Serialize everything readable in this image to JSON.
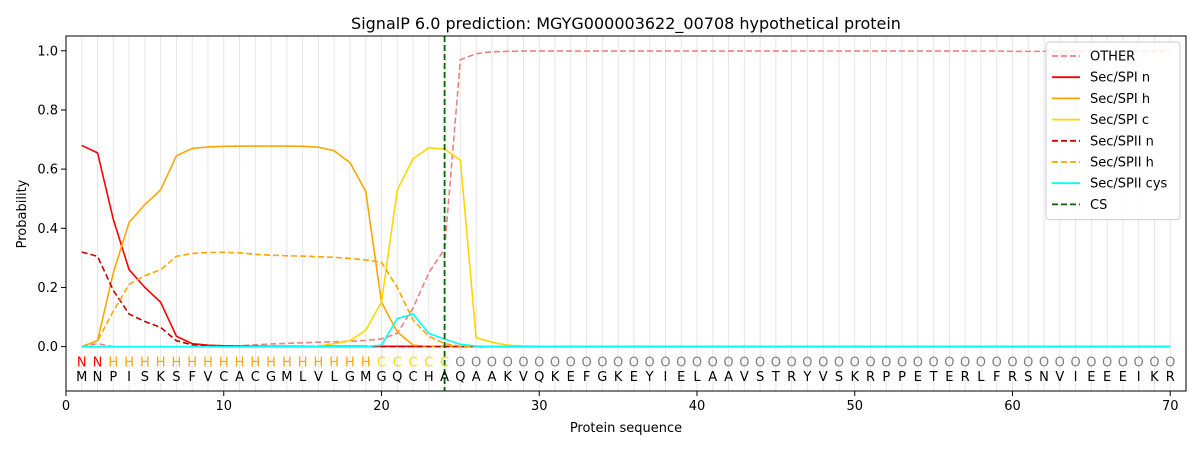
{
  "chart_data": {
    "type": "line",
    "title": "SignalP 6.0 prediction: MGYG000003622_00708 hypothetical protein",
    "xlabel": "Protein sequence",
    "ylabel": "Probability",
    "xlim": [
      0,
      71
    ],
    "ylim": [
      -0.15,
      1.05
    ],
    "xticks": [
      0,
      10,
      20,
      30,
      40,
      50,
      60,
      70
    ],
    "yticks": [
      0.0,
      0.2,
      0.4,
      0.6,
      0.8,
      1.0
    ],
    "xtick_labels": [
      "0",
      "10",
      "20",
      "30",
      "40",
      "50",
      "60",
      "70"
    ],
    "ytick_labels": [
      "0.0",
      "0.2",
      "0.4",
      "0.6",
      "0.8",
      "1.0"
    ],
    "grid": "vertical lines at each residue",
    "legend_position": "top-right",
    "sequence": "MNPISKSFVCACGMLVLGMGQCHAQAAKVQKEFGKEYIELAAVSTRYVSKRPPETERLFRSNVIEEEIKR",
    "region_labels": "NNHHHHHHHHHHHHHHHHHCCCCCOOOOOOOOOOOOOOOOOOOOOOOOOOOOOOOOOOOOOOOOOOOOOO",
    "region_colors": {
      "N": "#ff0000",
      "H": "#ffa500",
      "C": "#ffd700",
      "O": "#808080"
    },
    "cleavage_site": 24,
    "series": [
      {
        "name": "OTHER",
        "color": "#f08080",
        "dash": "dashed",
        "values": [
          0.0,
          0.01,
          0.0,
          0.0,
          0.0,
          0.0,
          0.0,
          0.0,
          0.0,
          0.0,
          0.003,
          0.006,
          0.009,
          0.011,
          0.013,
          0.015,
          0.016,
          0.018,
          0.021,
          0.026,
          0.045,
          0.13,
          0.25,
          0.33,
          0.97,
          0.99,
          0.997,
          0.998,
          0.999,
          0.999,
          0.999,
          0.999,
          0.999,
          0.999,
          0.999,
          0.999,
          0.999,
          0.999,
          0.999,
          0.999,
          0.999,
          0.999,
          0.999,
          0.999,
          0.999,
          0.999,
          0.999,
          0.999,
          0.999,
          0.999,
          0.999,
          0.999,
          0.999,
          0.999,
          0.999,
          0.999,
          0.999,
          0.999,
          0.999,
          0.998,
          0.998,
          0.998,
          0.998,
          0.998,
          0.998,
          0.998,
          0.998,
          0.998,
          0.998,
          0.998
        ]
      },
      {
        "name": "Sec/SPI n",
        "color": "#ff0000",
        "dash": "solid",
        "values": [
          0.68,
          0.655,
          0.43,
          0.26,
          0.2,
          0.15,
          0.035,
          0.01,
          0.005,
          0.003,
          0.002,
          0.001,
          0.001,
          0.001,
          0.001,
          0.001,
          0.001,
          0.001,
          0.001,
          0.001,
          0.001,
          0.001,
          0.001,
          0.001,
          0.0,
          0.0,
          0.0,
          0.0,
          0.0,
          0.0,
          0.0,
          0.0,
          0.0,
          0.0,
          0.0,
          0.0,
          0.0,
          0.0,
          0.0,
          0.0,
          0.0,
          0.0,
          0.0,
          0.0,
          0.0,
          0.0,
          0.0,
          0.0,
          0.0,
          0.0,
          0.0,
          0.0,
          0.0,
          0.0,
          0.0,
          0.0,
          0.0,
          0.0,
          0.0,
          0.0,
          0.0,
          0.0,
          0.0,
          0.0,
          0.0,
          0.0,
          0.0,
          0.0,
          0.0,
          0.0
        ]
      },
      {
        "name": "Sec/SPI h",
        "color": "#ffa500",
        "dash": "solid",
        "values": [
          0.0,
          0.02,
          0.25,
          0.42,
          0.48,
          0.53,
          0.645,
          0.67,
          0.675,
          0.677,
          0.678,
          0.678,
          0.678,
          0.678,
          0.677,
          0.674,
          0.662,
          0.622,
          0.525,
          0.15,
          0.05,
          0.005,
          0.001,
          0.0,
          0.0,
          0.0,
          0.0,
          0.0,
          0.0,
          0.0,
          0.0,
          0.0,
          0.0,
          0.0,
          0.0,
          0.0,
          0.0,
          0.0,
          0.0,
          0.0,
          0.0,
          0.0,
          0.0,
          0.0,
          0.0,
          0.0,
          0.0,
          0.0,
          0.0,
          0.0,
          0.0,
          0.0,
          0.0,
          0.0,
          0.0,
          0.0,
          0.0,
          0.0,
          0.0,
          0.0,
          0.0,
          0.0,
          0.0,
          0.0,
          0.0,
          0.0,
          0.0,
          0.0,
          0.0,
          0.0
        ]
      },
      {
        "name": "Sec/SPI c",
        "color": "#ffd700",
        "dash": "solid",
        "values": [
          0.0,
          0.0,
          0.0,
          0.0,
          0.0,
          0.0,
          0.0,
          0.0,
          0.0,
          0.0,
          0.0,
          0.0,
          0.0,
          0.0,
          0.0,
          0.002,
          0.01,
          0.02,
          0.055,
          0.15,
          0.53,
          0.635,
          0.672,
          0.668,
          0.63,
          0.03,
          0.015,
          0.005,
          0.002,
          0.001,
          0.0,
          0.0,
          0.0,
          0.0,
          0.0,
          0.0,
          0.0,
          0.0,
          0.0,
          0.0,
          0.0,
          0.0,
          0.0,
          0.0,
          0.0,
          0.0,
          0.0,
          0.0,
          0.0,
          0.0,
          0.0,
          0.0,
          0.0,
          0.0,
          0.0,
          0.0,
          0.0,
          0.0,
          0.0,
          0.0,
          0.0,
          0.0,
          0.0,
          0.0,
          0.0,
          0.0,
          0.0,
          0.0,
          0.0,
          0.0
        ]
      },
      {
        "name": "Sec/SPII n",
        "color": "#cc0000",
        "dash": "dashed",
        "values": [
          0.32,
          0.305,
          0.19,
          0.11,
          0.085,
          0.065,
          0.02,
          0.006,
          0.003,
          0.002,
          0.001,
          0.001,
          0.001,
          0.0,
          0.0,
          0.0,
          0.0,
          0.0,
          0.0,
          0.0,
          0.0,
          0.0,
          0.0,
          0.0,
          0.0,
          0.0,
          0.0,
          0.0,
          0.0,
          0.0,
          0.0,
          0.0,
          0.0,
          0.0,
          0.0,
          0.0,
          0.0,
          0.0,
          0.0,
          0.0,
          0.0,
          0.0,
          0.0,
          0.0,
          0.0,
          0.0,
          0.0,
          0.0,
          0.0,
          0.0,
          0.0,
          0.0,
          0.0,
          0.0,
          0.0,
          0.0,
          0.0,
          0.0,
          0.0,
          0.0,
          0.0,
          0.0,
          0.0,
          0.0,
          0.0,
          0.0,
          0.0,
          0.0,
          0.0,
          0.0
        ]
      },
      {
        "name": "Sec/SPII h",
        "color": "#ffa500",
        "dash": "dashed",
        "values": [
          0.0,
          0.02,
          0.12,
          0.21,
          0.24,
          0.26,
          0.305,
          0.315,
          0.318,
          0.319,
          0.317,
          0.312,
          0.309,
          0.307,
          0.306,
          0.304,
          0.302,
          0.298,
          0.293,
          0.285,
          0.2,
          0.09,
          0.035,
          0.01,
          0.002,
          0.0,
          0.0,
          0.0,
          0.0,
          0.0,
          0.0,
          0.0,
          0.0,
          0.0,
          0.0,
          0.0,
          0.0,
          0.0,
          0.0,
          0.0,
          0.0,
          0.0,
          0.0,
          0.0,
          0.0,
          0.0,
          0.0,
          0.0,
          0.0,
          0.0,
          0.0,
          0.0,
          0.0,
          0.0,
          0.0,
          0.0,
          0.0,
          0.0,
          0.0,
          0.0,
          0.0,
          0.0,
          0.0,
          0.0,
          0.0,
          0.0,
          0.0,
          0.0,
          0.0,
          0.0
        ]
      },
      {
        "name": "Sec/SPII cys",
        "color": "#00ffff",
        "dash": "solid",
        "values": [
          0.0,
          0.0,
          0.0,
          0.0,
          0.0,
          0.0,
          0.0,
          0.0,
          0.0,
          0.0,
          0.0,
          0.0,
          0.0,
          0.0,
          0.0,
          0.0,
          0.0,
          0.0,
          0.0,
          0.005,
          0.095,
          0.11,
          0.045,
          0.025,
          0.008,
          0.002,
          0.0,
          0.0,
          0.0,
          0.0,
          0.0,
          0.0,
          0.0,
          0.0,
          0.0,
          0.0,
          0.0,
          0.0,
          0.0,
          0.0,
          0.0,
          0.0,
          0.0,
          0.0,
          0.0,
          0.0,
          0.0,
          0.0,
          0.0,
          0.0,
          0.0,
          0.0,
          0.0,
          0.0,
          0.0,
          0.0,
          0.0,
          0.0,
          0.0,
          0.0,
          0.0,
          0.0,
          0.0,
          0.0,
          0.0,
          0.0,
          0.0,
          0.0,
          0.0,
          0.0
        ]
      }
    ],
    "cs_legend": {
      "name": "CS",
      "color": "#006400",
      "dash": "dashed"
    }
  }
}
